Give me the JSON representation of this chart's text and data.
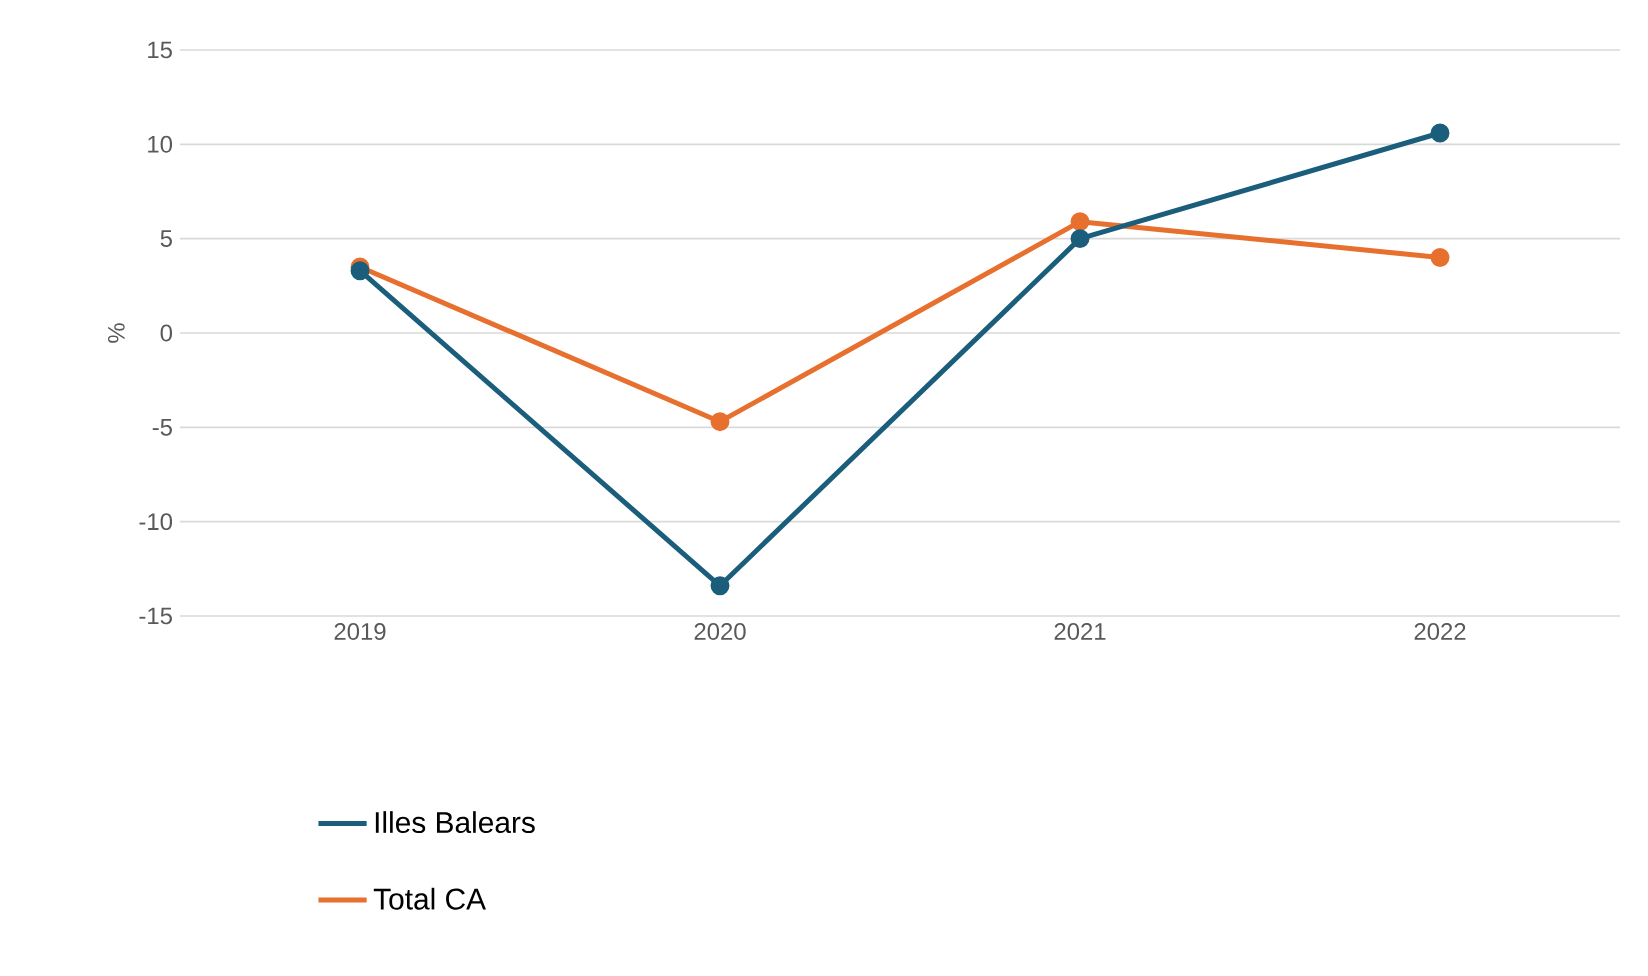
{
  "chart_data": {
    "type": "line",
    "ylabel": "%",
    "categories": [
      "2019",
      "2020",
      "2021",
      "2022"
    ],
    "series": [
      {
        "name": "Illes Balears",
        "color": "#1b5e7b",
        "values": [
          3.3,
          -13.4,
          5.0,
          10.6
        ]
      },
      {
        "name": "Total CA",
        "color": "#e8702e",
        "values": [
          3.5,
          -4.7,
          5.9,
          4.0
        ]
      }
    ],
    "ylim": [
      -15,
      15
    ],
    "yticks": [
      -15,
      -10,
      -5,
      0,
      5,
      10,
      15
    ],
    "grid": "y",
    "legend": "bottom",
    "marker": "circle",
    "line_style": "solid"
  }
}
